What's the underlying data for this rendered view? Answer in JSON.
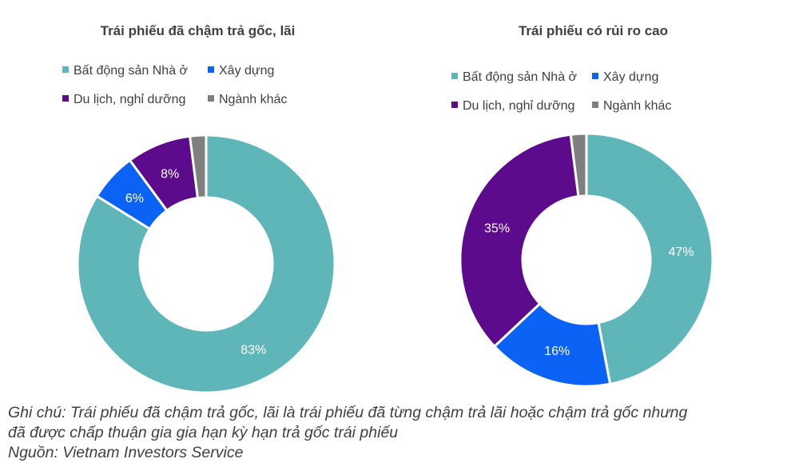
{
  "chart_data": [
    {
      "type": "pie",
      "title": "Trái phiếu đã chậm trả gốc, lãi",
      "categories": [
        "Bất động sản Nhà ở",
        "Xây dựng",
        "Du lịch, nghỉ dưỡng",
        "Ngành khác"
      ],
      "values": [
        83,
        6,
        8,
        2
      ],
      "labels": [
        "83%",
        "6%",
        "8%",
        ""
      ],
      "colors": [
        "#5FB6B8",
        "#0B63F6",
        "#5B0B8C",
        "#7F7F7F"
      ],
      "legend_position": "top",
      "donut": true
    },
    {
      "type": "pie",
      "title": "Trái phiếu có rủi ro cao",
      "categories": [
        "Bất động sản Nhà ở",
        "Xây dựng",
        "Du lịch, nghỉ dưỡng",
        "Ngành khác"
      ],
      "values": [
        47,
        16,
        35,
        2
      ],
      "labels": [
        "47%",
        "16%",
        "35%",
        ""
      ],
      "colors": [
        "#5FB6B8",
        "#0B63F6",
        "#5B0B8C",
        "#7F7F7F"
      ],
      "legend_position": "top",
      "donut": true
    }
  ],
  "caption": {
    "note_line1": "Ghi chú: Trái phiếu đã chậm trả gốc, lãi là trái phiếu đã từng chậm trả lãi hoặc chậm trả gốc nhưng",
    "note_line2": "đã được chấp thuận gia gia hạn kỳ hạn trả gốc trái phiếu",
    "source": "Nguồn: Vietnam Investors Service"
  }
}
